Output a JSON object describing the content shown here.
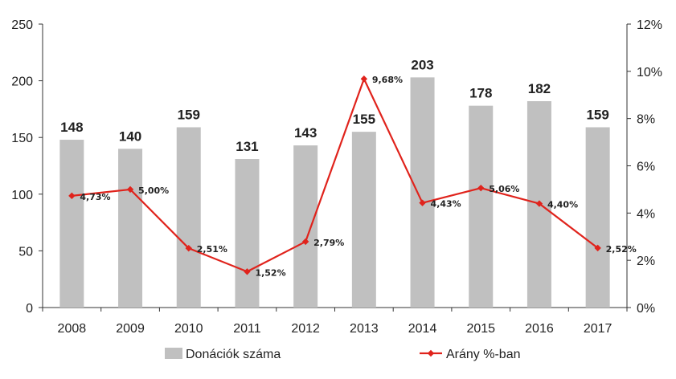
{
  "chart_data": {
    "type": "bar",
    "categories": [
      "2008",
      "2009",
      "2010",
      "2011",
      "2012",
      "2013",
      "2014",
      "2015",
      "2016",
      "2017"
    ],
    "series": [
      {
        "name": "Donációk száma",
        "type": "bar",
        "axis": "left",
        "color": "#c0c0c0",
        "values": [
          148,
          140,
          159,
          131,
          143,
          155,
          203,
          178,
          182,
          159
        ],
        "labels": [
          "148",
          "140",
          "159",
          "131",
          "143",
          "155",
          "203",
          "178",
          "182",
          "159"
        ]
      },
      {
        "name": "Arány %-ban",
        "type": "line",
        "axis": "right",
        "color": "#e0231c",
        "values": [
          4.73,
          5.0,
          2.51,
          1.52,
          2.79,
          9.68,
          4.43,
          5.06,
          4.4,
          2.52
        ],
        "labels": [
          "4,73%",
          "5,00%",
          "2,51%",
          "1,52%",
          "2,79%",
          "9,68%",
          "4,43%",
          "5,06%",
          "4,40%",
          "2,52%"
        ]
      }
    ],
    "y_left": {
      "range": [
        0,
        250
      ],
      "ticks": [
        "0",
        "50",
        "100",
        "150",
        "200",
        "250"
      ]
    },
    "y_right": {
      "range": [
        0,
        12
      ],
      "ticks": [
        "0%",
        "2%",
        "4%",
        "6%",
        "8%",
        "10%",
        "12%"
      ]
    },
    "grid": false,
    "legend_position": "bottom"
  }
}
